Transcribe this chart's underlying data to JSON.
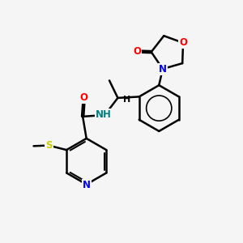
{
  "bg_color": "#f5f5f5",
  "bond_color": "#000000",
  "bond_width": 1.8,
  "atoms": {
    "N_blue": "#0000ff",
    "O_red": "#ff0000",
    "S_yellow": "#cccc00",
    "N_amide": "#008080",
    "C_black": "#000000"
  },
  "figsize": [
    3.0,
    3.0
  ],
  "dpi": 100,
  "xlim": [
    0,
    10
  ],
  "ylim": [
    0,
    10
  ]
}
